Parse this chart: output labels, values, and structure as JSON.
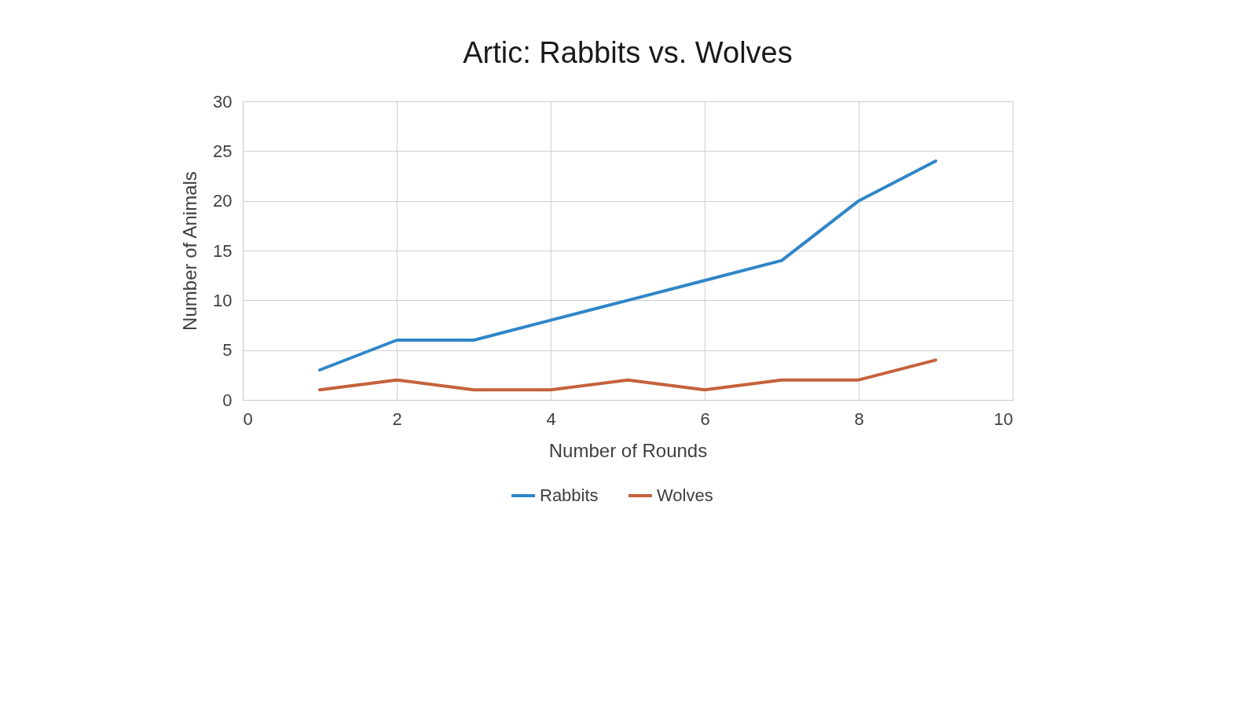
{
  "chart_data": {
    "type": "line",
    "title": "Artic: Rabbits vs. Wolves",
    "xlabel": "Number of Rounds",
    "ylabel": "Number of Animals",
    "x": [
      1,
      2,
      3,
      4,
      5,
      6,
      7,
      8,
      9
    ],
    "series": [
      {
        "name": "Rabbits",
        "color": "#2f86c8",
        "values": [
          3,
          6,
          6,
          8,
          10,
          12,
          14,
          20,
          24
        ]
      },
      {
        "name": "Wolves",
        "color": "#c4623a",
        "values": [
          1,
          2,
          1,
          1,
          2,
          1,
          2,
          2,
          4
        ]
      }
    ],
    "xlim": [
      0,
      10
    ],
    "xticks": [
      0,
      2,
      4,
      6,
      8,
      10
    ],
    "ylim": [
      0,
      30
    ],
    "yticks": [
      0,
      5,
      10,
      15,
      20,
      25,
      30
    ],
    "grid": true,
    "legend": "bottom",
    "line_style": "solid"
  }
}
